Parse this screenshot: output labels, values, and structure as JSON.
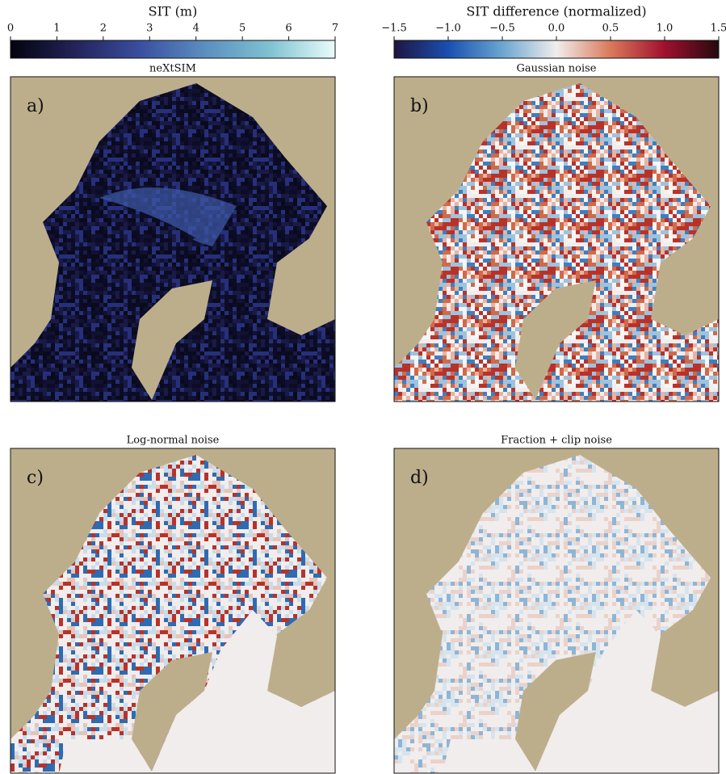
{
  "colorbars": [
    {
      "label": "SIT (m)",
      "lim": [
        0,
        7
      ],
      "ticks": [
        0,
        1,
        2,
        3,
        4,
        5,
        6,
        7
      ],
      "colors": [
        "#03030f",
        "#23235a",
        "#3a4fa0",
        "#5b8fc0",
        "#7fc2d2",
        "#eafcfc"
      ]
    },
    {
      "label": "SIT difference (normalized)",
      "lim": [
        -1.5,
        1.5
      ],
      "ticks": [
        {
          "value": -1.5,
          "label": "−1.5"
        },
        {
          "value": -1.0,
          "label": "−1.0"
        },
        {
          "value": -0.5,
          "label": "−0.5"
        },
        {
          "value": 0.0,
          "label": "0.0"
        },
        {
          "value": 0.5,
          "label": "0.5"
        },
        {
          "value": 1.0,
          "label": "1.0"
        },
        {
          "value": 1.5,
          "label": "1.5"
        }
      ],
      "colors": [
        "#1e1540",
        "#1a4fb0",
        "#6aa6d0",
        "#f1eded",
        "#d9795a",
        "#a0102e",
        "#250a10"
      ]
    }
  ],
  "panels": [
    {
      "title": "neXtSIM",
      "label": "a)"
    },
    {
      "title": "Gaussian noise",
      "label": "b)"
    },
    {
      "title": "Log-normal noise",
      "label": "c)"
    },
    {
      "title": "Fraction + clip noise",
      "label": "d)"
    }
  ]
}
